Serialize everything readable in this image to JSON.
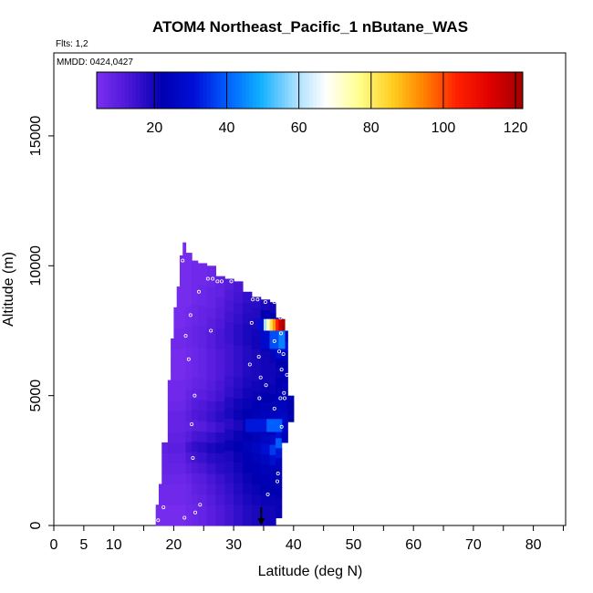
{
  "chart_data": {
    "type": "heatmap",
    "title": "ATOM4 Northeast_Pacific_1 nButane_WAS",
    "flights_label": "Flts: 1,2",
    "dates_label": "MMDD: 0424,0427",
    "xlabel": "Latitude (deg N)",
    "ylabel": "Altitude (m)",
    "xlim": [
      0,
      85
    ],
    "ylim": [
      0,
      18000
    ],
    "x_ticks": [
      0,
      5,
      10,
      20,
      30,
      40,
      50,
      60,
      70,
      80
    ],
    "y_ticks": [
      0,
      5000,
      10000,
      15000
    ],
    "colorbar": {
      "min": 4,
      "max": 122,
      "ticks": [
        20,
        40,
        60,
        80,
        100,
        120
      ],
      "colors": [
        "#7b2ff0",
        "#4a16d6",
        "#0000b0",
        "#0010d8",
        "#0060ff",
        "#10b0ff",
        "#a0dcff",
        "#ffffff",
        "#ffff90",
        "#ffd020",
        "#ff8000",
        "#ff2000",
        "#e00000",
        "#a00000"
      ]
    },
    "columns": [
      {
        "x0": 17.0,
        "x1": 17.5,
        "z0": 0,
        "z1": 800,
        "values": [
          5,
          5
        ]
      },
      {
        "x0": 17.5,
        "x1": 18.0,
        "z0": 0,
        "z1": 1600,
        "values": [
          5,
          5,
          6,
          6
        ]
      },
      {
        "x0": 18.0,
        "x1": 19.0,
        "z0": 0,
        "z1": 3200,
        "values": [
          5,
          5,
          6,
          6,
          7,
          8,
          8,
          9
        ]
      },
      {
        "x0": 19.0,
        "x1": 19.5,
        "z0": 0,
        "z1": 5600,
        "values": [
          5,
          5,
          6,
          6,
          7,
          8,
          9,
          10,
          9,
          8,
          8,
          7,
          6,
          6
        ]
      },
      {
        "x0": 19.5,
        "x1": 20.0,
        "z0": 0,
        "z1": 7200,
        "values": [
          5,
          5,
          6,
          6,
          7,
          8,
          9,
          10,
          9,
          8,
          8,
          7,
          6,
          6,
          5,
          5,
          5,
          6
        ]
      },
      {
        "x0": 20.0,
        "x1": 20.5,
        "z0": 0,
        "z1": 8400,
        "values": [
          5,
          5,
          6,
          6,
          7,
          8,
          9,
          10,
          9,
          8,
          8,
          7,
          6,
          6,
          5,
          5,
          5,
          6,
          6,
          5,
          5
        ]
      },
      {
        "x0": 20.5,
        "x1": 21.0,
        "z0": 0,
        "z1": 9200,
        "values": [
          5,
          5,
          6,
          6,
          7,
          8,
          9,
          10,
          9,
          8,
          8,
          7,
          6,
          6,
          5,
          5,
          5,
          6,
          6,
          5,
          5,
          5,
          5
        ]
      },
      {
        "x0": 21.0,
        "x1": 21.5,
        "z0": 0,
        "z1": 10400,
        "values": [
          5,
          5,
          6,
          6,
          7,
          8,
          9,
          10,
          9,
          8,
          8,
          7,
          6,
          6,
          5,
          5,
          5,
          6,
          6,
          5,
          5,
          5,
          5,
          5,
          5,
          5
        ]
      },
      {
        "x0": 21.5,
        "x1": 22.0,
        "z0": 0,
        "z1": 10900,
        "values": [
          5,
          5,
          6,
          6,
          7,
          8,
          9,
          10,
          9,
          8,
          8,
          7,
          6,
          6,
          5,
          5,
          5,
          6,
          6,
          5,
          5,
          5,
          5,
          5,
          5,
          5,
          5
        ]
      },
      {
        "x0": 22.0,
        "x1": 23.0,
        "z0": 0,
        "z1": 10500,
        "values": [
          6,
          6,
          7,
          7,
          8,
          10,
          12,
          14,
          11,
          9,
          10,
          9,
          8,
          7,
          6,
          6,
          6,
          7,
          7,
          6,
          6,
          5,
          5,
          5,
          5,
          5
        ]
      },
      {
        "x0": 23.0,
        "x1": 24.0,
        "z0": 0,
        "z1": 10200,
        "values": [
          7,
          7,
          8,
          9,
          10,
          12,
          14,
          16,
          13,
          10,
          12,
          11,
          9,
          8,
          7,
          7,
          7,
          8,
          8,
          7,
          7,
          6,
          6,
          6,
          6
        ]
      },
      {
        "x0": 24.0,
        "x1": 25.5,
        "z0": 0,
        "z1": 10100,
        "values": [
          8,
          8,
          9,
          10,
          11,
          13,
          15,
          17,
          14,
          11,
          13,
          12,
          10,
          9,
          8,
          8,
          8,
          9,
          9,
          8,
          8,
          7,
          7,
          6,
          6
        ]
      },
      {
        "x0": 25.5,
        "x1": 27.0,
        "z0": 0,
        "z1": 10000,
        "values": [
          10,
          10,
          11,
          12,
          13,
          15,
          17,
          19,
          16,
          13,
          15,
          14,
          12,
          11,
          10,
          10,
          10,
          11,
          11,
          10,
          9,
          8,
          8,
          7,
          7
        ]
      },
      {
        "x0": 27.0,
        "x1": 28.5,
        "z0": 0,
        "z1": 9600,
        "values": [
          12,
          12,
          13,
          14,
          15,
          17,
          18,
          20,
          18,
          15,
          17,
          16,
          14,
          13,
          12,
          12,
          12,
          13,
          13,
          12,
          11,
          10,
          9,
          9
        ]
      },
      {
        "x0": 28.5,
        "x1": 30.0,
        "z0": 0,
        "z1": 9500,
        "values": [
          14,
          14,
          15,
          16,
          17,
          18,
          19,
          21,
          19,
          17,
          19,
          18,
          16,
          15,
          14,
          14,
          14,
          15,
          15,
          14,
          13,
          12,
          11
        ]
      },
      {
        "x0": 30.0,
        "x1": 31.5,
        "z0": 0,
        "z1": 9400,
        "values": [
          16,
          16,
          17,
          18,
          19,
          20,
          21,
          22,
          21,
          19,
          21,
          20,
          18,
          17,
          16,
          16,
          16,
          17,
          17,
          16,
          15,
          14,
          13
        ]
      },
      {
        "x0": 31.5,
        "x1": 33.0,
        "z0": 0,
        "z1": 9000,
        "values": [
          18,
          18,
          19,
          20,
          21,
          22,
          23,
          24,
          22,
          21,
          22,
          21,
          20,
          19,
          18,
          18,
          18,
          19,
          19,
          18,
          17,
          16
        ]
      },
      {
        "x0": 33.0,
        "x1": 34.5,
        "z0": 0,
        "z1": 8800,
        "values": [
          19,
          19,
          20,
          21,
          22,
          23,
          24,
          26,
          24,
          22,
          24,
          23,
          21,
          20,
          19,
          19,
          19,
          20,
          20,
          19,
          18,
          17
        ]
      },
      {
        "x0": 34.5,
        "x1": 36.0,
        "z0": 0,
        "z1": 8700,
        "values": [
          20,
          20,
          21,
          22,
          23,
          24,
          26,
          30,
          26,
          23,
          25,
          24,
          22,
          21,
          20,
          20,
          20,
          21,
          22,
          24,
          22,
          19
        ]
      },
      {
        "x0": 36.0,
        "x1": 37.0,
        "z0": 0,
        "z1": 8600,
        "values": [
          20,
          20,
          21,
          22,
          23,
          24,
          30,
          36,
          28,
          23,
          25,
          24,
          22,
          21,
          20,
          20,
          21,
          26,
          34,
          30,
          22,
          20
        ]
      },
      {
        "x0": 37.0,
        "x1": 38.0,
        "z0": 300,
        "z1": 8000,
        "values": [
          21,
          21,
          22,
          23,
          24,
          25,
          32,
          40,
          30,
          24,
          26,
          25,
          23,
          22,
          21,
          22,
          30,
          42,
          40,
          22
        ]
      },
      {
        "x0": 38.0,
        "x1": 39.0,
        "z0": 3200,
        "z1": 7500,
        "values": [
          24,
          26,
          27,
          25,
          24,
          24,
          23,
          22,
          25,
          30,
          24
        ]
      },
      {
        "x0": 39.0,
        "x1": 40.0,
        "z0": 4000,
        "z1": 5000,
        "values": [
          22,
          22,
          22
        ]
      }
    ],
    "hotspot": [
      {
        "x0": 34.0,
        "x1": 35.0,
        "z0": 7500,
        "z1": 7950,
        "value": 30
      },
      {
        "x0": 35.0,
        "x1": 35.5,
        "z0": 7500,
        "z1": 7950,
        "value": 60
      },
      {
        "x0": 35.5,
        "x1": 36.0,
        "z0": 7500,
        "z1": 7950,
        "value": 72
      },
      {
        "x0": 36.0,
        "x1": 36.5,
        "z0": 7500,
        "z1": 7950,
        "value": 82
      },
      {
        "x0": 36.5,
        "x1": 37.0,
        "z0": 7500,
        "z1": 7950,
        "value": 92
      },
      {
        "x0": 37.0,
        "x1": 37.5,
        "z0": 7500,
        "z1": 7950,
        "value": 104
      },
      {
        "x0": 37.5,
        "x1": 38.0,
        "z0": 7500,
        "z1": 7950,
        "value": 115
      },
      {
        "x0": 38.0,
        "x1": 38.5,
        "z0": 7500,
        "z1": 7950,
        "value": 120
      },
      {
        "x0": 34.5,
        "x1": 36.0,
        "z0": 6800,
        "z1": 7500,
        "value": 28
      },
      {
        "x0": 36.0,
        "x1": 37.5,
        "z0": 6800,
        "z1": 7500,
        "value": 38
      },
      {
        "x0": 37.5,
        "x1": 38.5,
        "z0": 6800,
        "z1": 7500,
        "value": 44
      },
      {
        "x0": 32.0,
        "x1": 35.5,
        "z0": 3600,
        "z1": 4100,
        "value": 32
      },
      {
        "x0": 35.5,
        "x1": 38.0,
        "z0": 3600,
        "z1": 4100,
        "value": 40
      }
    ],
    "samples": [
      {
        "lat": 17.4,
        "alt": 200
      },
      {
        "lat": 18.3,
        "alt": 700
      },
      {
        "lat": 21.8,
        "alt": 300
      },
      {
        "lat": 23.6,
        "alt": 500
      },
      {
        "lat": 24.4,
        "alt": 800
      },
      {
        "lat": 23.2,
        "alt": 2600
      },
      {
        "lat": 23.0,
        "alt": 3900
      },
      {
        "lat": 23.5,
        "alt": 5000
      },
      {
        "lat": 22.5,
        "alt": 6400
      },
      {
        "lat": 22.0,
        "alt": 7300
      },
      {
        "lat": 22.8,
        "alt": 8100
      },
      {
        "lat": 20.0,
        "alt": 9600
      },
      {
        "lat": 21.5,
        "alt": 10200
      },
      {
        "lat": 24.2,
        "alt": 9000
      },
      {
        "lat": 25.7,
        "alt": 9500
      },
      {
        "lat": 26.5,
        "alt": 9500
      },
      {
        "lat": 27.3,
        "alt": 9400
      },
      {
        "lat": 28.0,
        "alt": 9400
      },
      {
        "lat": 29.6,
        "alt": 9400
      },
      {
        "lat": 26.2,
        "alt": 7500
      },
      {
        "lat": 33.2,
        "alt": 8700
      },
      {
        "lat": 34.0,
        "alt": 8700
      },
      {
        "lat": 35.3,
        "alt": 8600
      },
      {
        "lat": 36.8,
        "alt": 8600
      },
      {
        "lat": 33.0,
        "alt": 7800
      },
      {
        "lat": 32.7,
        "alt": 6200
      },
      {
        "lat": 34.2,
        "alt": 6500
      },
      {
        "lat": 34.5,
        "alt": 5700
      },
      {
        "lat": 35.4,
        "alt": 5400
      },
      {
        "lat": 34.3,
        "alt": 4900
      },
      {
        "lat": 37.8,
        "alt": 8000
      },
      {
        "lat": 37.9,
        "alt": 7400
      },
      {
        "lat": 36.8,
        "alt": 7100
      },
      {
        "lat": 37.6,
        "alt": 6700
      },
      {
        "lat": 38.3,
        "alt": 6600
      },
      {
        "lat": 38.0,
        "alt": 6000
      },
      {
        "lat": 38.9,
        "alt": 5800
      },
      {
        "lat": 38.4,
        "alt": 5100
      },
      {
        "lat": 37.8,
        "alt": 4900
      },
      {
        "lat": 38.5,
        "alt": 4900
      },
      {
        "lat": 36.8,
        "alt": 4500
      },
      {
        "lat": 38.0,
        "alt": 3800
      },
      {
        "lat": 37.4,
        "alt": 2000
      },
      {
        "lat": 37.3,
        "alt": 1700
      },
      {
        "lat": 35.7,
        "alt": 1200
      }
    ],
    "arrow": {
      "lat": 34.6,
      "alt_from": 700,
      "alt_to": 0
    }
  }
}
